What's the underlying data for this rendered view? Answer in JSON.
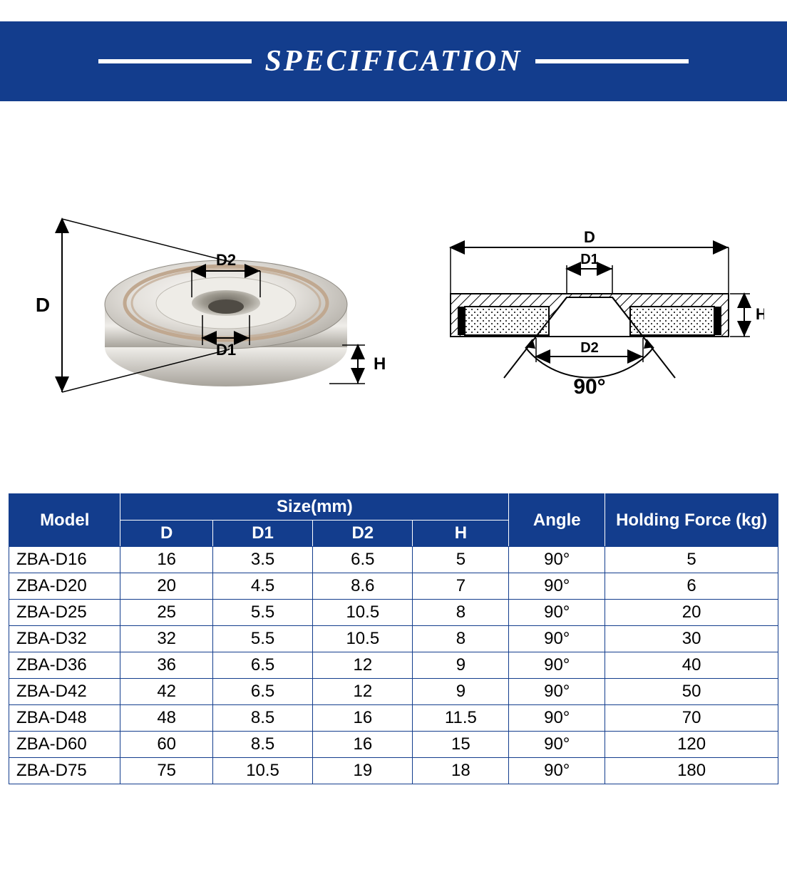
{
  "banner": {
    "title": "SPECIFICATION"
  },
  "diagram": {
    "labels": {
      "D": "D",
      "D1": "D1",
      "D2": "D2",
      "H": "H",
      "angle": "90°"
    },
    "colors": {
      "stroke": "#000000",
      "metal_light": "#f4f2ef",
      "metal_mid": "#d9d6d1",
      "metal_dark": "#b9b5ae",
      "ring": "#c0a890",
      "banner_bg": "#133d8d"
    }
  },
  "table": {
    "type": "table",
    "header": {
      "model": "Model",
      "size_group": "Size(mm)",
      "size_cols": [
        "D",
        "D1",
        "D2",
        "H"
      ],
      "angle": "Angle",
      "force": "Holding Force (kg)"
    },
    "col_widths_pct": [
      14.5,
      12.0,
      13.0,
      13.0,
      12.5,
      12.5,
      22.5
    ],
    "header_bg": "#133d8d",
    "header_fg": "#ffffff",
    "border_color": "#133d8d",
    "cell_fg": "#000000",
    "font_size_pt": 18,
    "rows": [
      [
        "ZBA-D16",
        "16",
        "3.5",
        "6.5",
        "5",
        "90°",
        "5"
      ],
      [
        "ZBA-D20",
        "20",
        "4.5",
        "8.6",
        "7",
        "90°",
        "6"
      ],
      [
        "ZBA-D25",
        "25",
        "5.5",
        "10.5",
        "8",
        "90°",
        "20"
      ],
      [
        "ZBA-D32",
        "32",
        "5.5",
        "10.5",
        "8",
        "90°",
        "30"
      ],
      [
        "ZBA-D36",
        "36",
        "6.5",
        "12",
        "9",
        "90°",
        "40"
      ],
      [
        "ZBA-D42",
        "42",
        "6.5",
        "12",
        "9",
        "90°",
        "50"
      ],
      [
        "ZBA-D48",
        "48",
        "8.5",
        "16",
        "11.5",
        "90°",
        "70"
      ],
      [
        "ZBA-D60",
        "60",
        "8.5",
        "16",
        "15",
        "90°",
        "120"
      ],
      [
        "ZBA-D75",
        "75",
        "10.5",
        "19",
        "18",
        "90°",
        "180"
      ]
    ]
  }
}
